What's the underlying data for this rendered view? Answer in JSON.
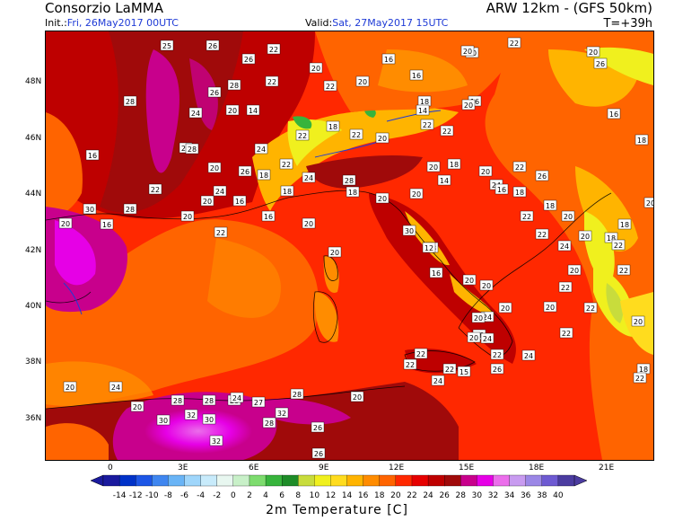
{
  "header": {
    "source": "Consorzio LaMMA",
    "model": "ARW 12km - (GFS 50km)",
    "init_label": "Init.:",
    "init_value": "Fri, 26May2017 00UTC",
    "valid_label": "Valid:",
    "valid_value": "Sat, 27May2017 15UTC",
    "step": "T=+39h"
  },
  "axes": {
    "lat_labels": [
      "48N",
      "46N",
      "44N",
      "42N",
      "40N",
      "38N",
      "36N"
    ],
    "lon_labels": [
      "0",
      "3E",
      "6E",
      "9E",
      "12E",
      "15E",
      "18E",
      "21E"
    ]
  },
  "legend": {
    "title": "2m Temperature [C]",
    "values": [
      "-14",
      "-12",
      "-10",
      "-8",
      "-6",
      "-4",
      "-2",
      "0",
      "2",
      "4",
      "6",
      "8",
      "10",
      "12",
      "14",
      "16",
      "18",
      "20",
      "22",
      "24",
      "26",
      "28",
      "30",
      "32",
      "34",
      "36",
      "38",
      "40"
    ],
    "colors": [
      "#1a1a9e",
      "#0032c8",
      "#1d56e6",
      "#3f86f0",
      "#69b4f6",
      "#9fd6fb",
      "#c8ebfb",
      "#e8f7f0",
      "#c8f0c8",
      "#7ddc6e",
      "#37b43c",
      "#1e8c28",
      "#c8dc3c",
      "#f0f01e",
      "#ffdc1e",
      "#ffb400",
      "#ff8c00",
      "#ff6400",
      "#ff2800",
      "#e60000",
      "#be0000",
      "#a00a0a",
      "#c8008c",
      "#e600e6",
      "#eb6eeb",
      "#c89bf0",
      "#9b87e6",
      "#6e5ad2",
      "#4b3ca0"
    ]
  },
  "labels": [
    {
      "t": "28"
    },
    {
      "t": "24"
    },
    {
      "t": "28"
    },
    {
      "t": "25"
    },
    {
      "t": "26"
    },
    {
      "t": "26"
    },
    {
      "t": "22"
    },
    {
      "t": "22"
    },
    {
      "t": "20"
    },
    {
      "t": "22"
    },
    {
      "t": "20"
    },
    {
      "t": "16"
    },
    {
      "t": "16"
    },
    {
      "t": "18"
    },
    {
      "t": "14"
    },
    {
      "t": "16"
    },
    {
      "t": "20"
    },
    {
      "t": "22"
    },
    {
      "t": "28"
    },
    {
      "t": "28"
    },
    {
      "t": "26"
    },
    {
      "t": "24"
    },
    {
      "t": "20"
    },
    {
      "t": "14"
    },
    {
      "t": "22"
    },
    {
      "t": "18"
    },
    {
      "t": "22"
    },
    {
      "t": "20"
    },
    {
      "t": "22"
    },
    {
      "t": "22"
    },
    {
      "t": "20"
    },
    {
      "t": "20"
    },
    {
      "t": "20"
    },
    {
      "t": "26"
    },
    {
      "t": "16"
    },
    {
      "t": "18"
    },
    {
      "t": "16"
    },
    {
      "t": "22"
    },
    {
      "t": "28"
    },
    {
      "t": "20"
    },
    {
      "t": "30"
    },
    {
      "t": "28"
    },
    {
      "t": "22"
    },
    {
      "t": "26"
    },
    {
      "t": "24"
    },
    {
      "t": "18"
    },
    {
      "t": "24"
    },
    {
      "t": "20"
    },
    {
      "t": "16"
    },
    {
      "t": "18"
    },
    {
      "t": "22"
    },
    {
      "t": "24"
    },
    {
      "t": "28"
    },
    {
      "t": "18"
    },
    {
      "t": "20"
    },
    {
      "t": "20"
    },
    {
      "t": "20"
    },
    {
      "t": "18"
    },
    {
      "t": "14"
    },
    {
      "t": "20"
    },
    {
      "t": "22"
    },
    {
      "t": "26"
    },
    {
      "t": "24"
    },
    {
      "t": "16"
    },
    {
      "t": "18"
    },
    {
      "t": "18"
    },
    {
      "t": "20"
    },
    {
      "t": "22"
    },
    {
      "t": "20"
    },
    {
      "t": "18"
    },
    {
      "t": "18"
    },
    {
      "t": "20"
    },
    {
      "t": "20"
    },
    {
      "t": "16"
    },
    {
      "t": "20"
    },
    {
      "t": "16"
    },
    {
      "t": "20"
    },
    {
      "t": "22"
    },
    {
      "t": "20"
    },
    {
      "t": "30"
    },
    {
      "t": "28"
    },
    {
      "t": "22"
    },
    {
      "t": "24"
    },
    {
      "t": "22"
    },
    {
      "t": "22"
    },
    {
      "t": "20"
    },
    {
      "t": "22"
    },
    {
      "t": "22"
    },
    {
      "t": "20"
    },
    {
      "t": "20"
    },
    {
      "t": "20"
    },
    {
      "t": "16"
    },
    {
      "t": "12"
    },
    {
      "t": "20"
    },
    {
      "t": "24"
    },
    {
      "t": "26"
    },
    {
      "t": "20"
    },
    {
      "t": "22"
    },
    {
      "t": "22"
    },
    {
      "t": "22"
    },
    {
      "t": "24"
    },
    {
      "t": "20"
    },
    {
      "t": "24"
    },
    {
      "t": "26"
    },
    {
      "t": "22"
    },
    {
      "t": "20"
    },
    {
      "t": "18"
    },
    {
      "t": "22"
    },
    {
      "t": "22"
    },
    {
      "t": "15"
    },
    {
      "t": "24"
    },
    {
      "t": "24"
    },
    {
      "t": "20"
    },
    {
      "t": "20"
    },
    {
      "t": "28"
    },
    {
      "t": "28"
    },
    {
      "t": "28"
    },
    {
      "t": "27"
    },
    {
      "t": "28"
    },
    {
      "t": "32"
    },
    {
      "t": "30"
    },
    {
      "t": "32"
    },
    {
      "t": "30"
    },
    {
      "t": "24"
    },
    {
      "t": "32"
    },
    {
      "t": "26"
    },
    {
      "t": "26"
    },
    {
      "t": "28"
    },
    {
      "t": "20"
    }
  ]
}
